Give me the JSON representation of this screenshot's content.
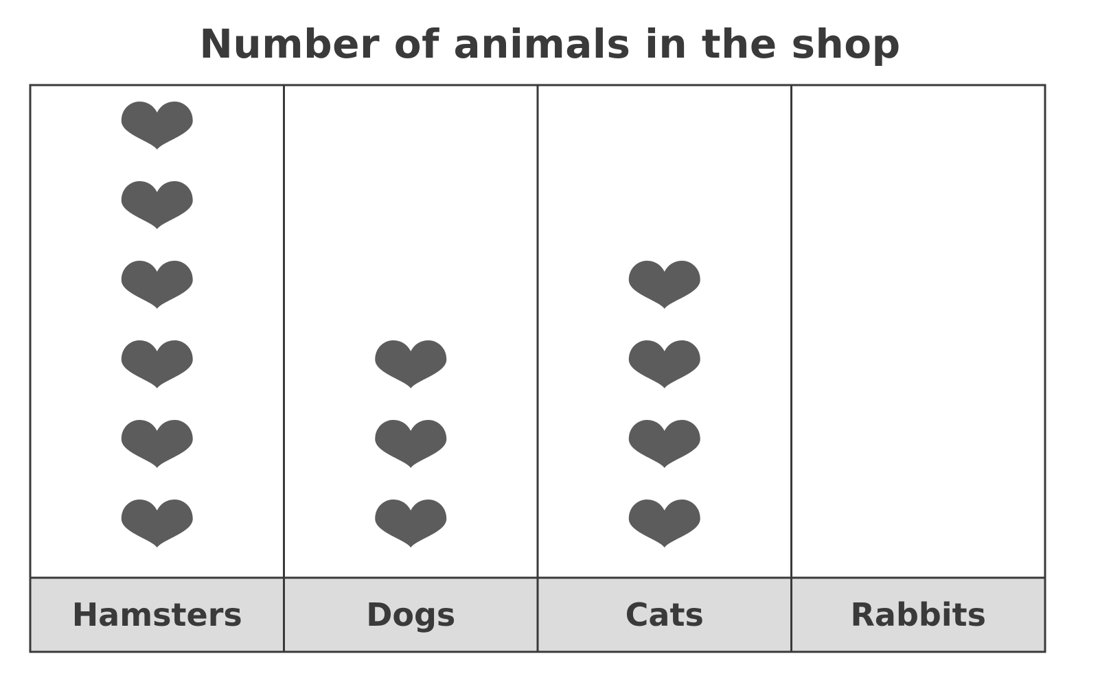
{
  "chart_data": {
    "type": "pictogram",
    "title": "Number of animals in the shop",
    "categories": [
      "Hamsters",
      "Dogs",
      "Cats",
      "Rabbits"
    ],
    "values": [
      6,
      3,
      4,
      0
    ],
    "symbol": "heart-icon",
    "colors": {
      "symbol": "#5c5c5c",
      "grid": "#3a3a3a",
      "label_band": "#dcdcdc",
      "text": "#3a3a3a"
    }
  }
}
